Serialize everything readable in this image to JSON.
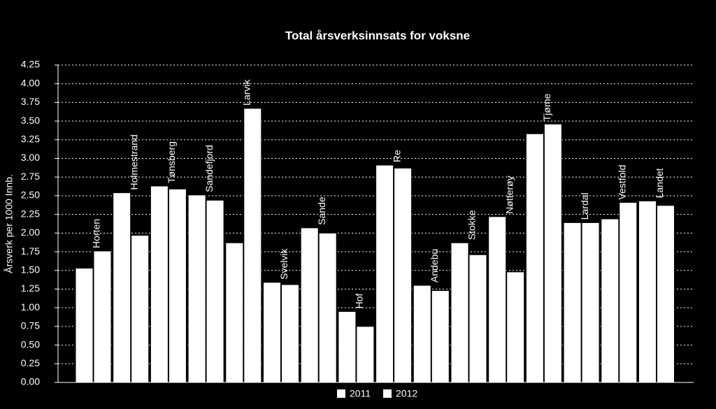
{
  "chart_data": {
    "type": "bar",
    "title": "Total årsverksinnsats for voksne",
    "y_label": "Årsverk per 1000 Innb.",
    "categories": [
      "Horten",
      "Holmestrand",
      "Tønsberg",
      "Sandefjord",
      "Larvik",
      "Svelvik",
      "Sande",
      "Hof",
      "Re",
      "Andebu",
      "Stokke",
      "Nøtterøy",
      "Tjøme",
      "Lardal",
      "Vestfold",
      "Landet"
    ],
    "series": [
      {
        "name": "2011",
        "color": "#ffffff",
        "values": [
          1.53,
          2.54,
          2.63,
          2.51,
          1.87,
          1.34,
          2.07,
          0.95,
          2.91,
          1.3,
          1.87,
          2.22,
          3.33,
          2.14,
          2.19,
          2.43
        ]
      },
      {
        "name": "2012",
        "color": "#ffffff",
        "values": [
          1.76,
          1.97,
          2.59,
          2.44,
          3.67,
          1.31,
          2.0,
          0.75,
          2.87,
          1.23,
          1.71,
          1.48,
          3.46,
          2.14,
          2.41,
          2.37
        ]
      }
    ],
    "ylim": [
      0,
      4.25
    ],
    "yticks": [
      {
        "value": 0,
        "label": "0.00"
      },
      {
        "value": 0.25,
        "label": "0.25"
      },
      {
        "value": 0.5,
        "label": "0.50"
      },
      {
        "value": 0.75,
        "label": "0.75"
      },
      {
        "value": 1,
        "label": "1.00"
      },
      {
        "value": 1.25,
        "label": "1.25"
      },
      {
        "value": 1.5,
        "label": "1.50"
      },
      {
        "value": 1.75,
        "label": "1.75"
      },
      {
        "value": 2,
        "label": "2.00"
      },
      {
        "value": 2.25,
        "label": "2.25"
      },
      {
        "value": 2.5,
        "label": "2.50"
      },
      {
        "value": 2.75,
        "label": "2.75"
      },
      {
        "value": 3,
        "label": "3.00"
      },
      {
        "value": 3.25,
        "label": "3.25"
      },
      {
        "value": 3.5,
        "label": "3.50"
      },
      {
        "value": 3.75,
        "label": "3.75"
      },
      {
        "value": 4,
        "label": "4.00"
      },
      {
        "value": 4.25,
        "label": "4.25"
      }
    ],
    "grid": true
  }
}
